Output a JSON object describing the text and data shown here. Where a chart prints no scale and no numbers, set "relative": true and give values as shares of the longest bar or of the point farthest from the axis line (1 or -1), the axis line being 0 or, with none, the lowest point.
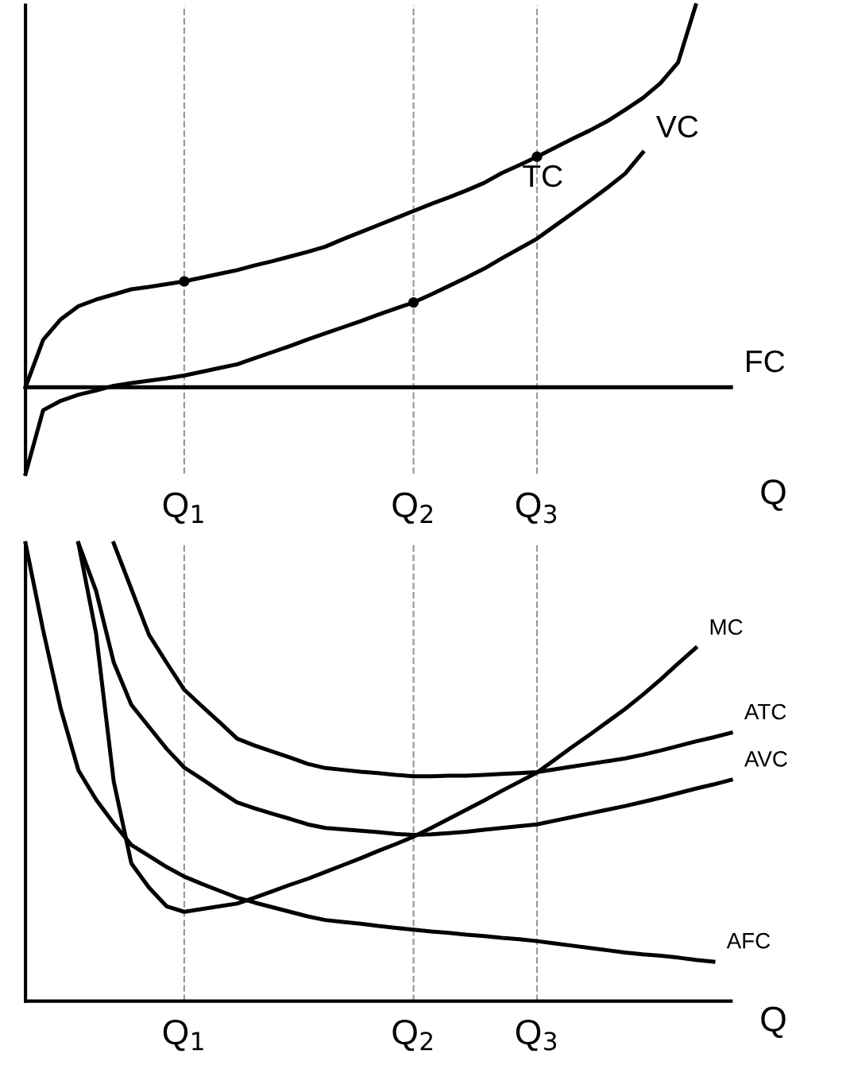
{
  "chart_data": [
    {
      "type": "line",
      "relative": true,
      "xlabel": "Q",
      "tick_labels": "x",
      "grid": false,
      "legend": false,
      "categories": [
        null,
        null,
        null,
        null,
        null,
        null,
        null,
        null,
        null,
        "Q$_{1}$",
        null,
        null,
        null,
        null,
        null,
        null,
        null,
        null,
        null,
        null,
        null,
        null,
        "Q$_{2}$",
        null,
        null,
        null,
        null,
        null,
        null,
        "Q$_{3}$",
        null,
        null,
        null,
        null,
        null,
        null,
        null,
        null,
        null,
        null,
        null
      ],
      "ref_lines": [
        {
          "axis": "x",
          "value": "Q$_{1}$",
          "label": null,
          "color": "#999999",
          "line_style": "dashed"
        },
        {
          "axis": "x",
          "value": "Q$_{2}$",
          "label": null,
          "color": "#999999",
          "line_style": "dashed"
        },
        {
          "axis": "x",
          "value": "Q$_{3}$",
          "label": null,
          "color": "#999999",
          "line_style": "dashed"
        }
      ],
      "series": [
        {
          "name": "TC",
          "color": "#000000",
          "values": [
            0.185,
            0.286,
            0.33,
            0.358,
            0.372,
            0.383,
            0.394,
            0.399,
            0.405,
            0.411,
            0.419,
            0.427,
            0.435,
            0.445,
            0.454,
            0.464,
            0.474,
            0.485,
            0.501,
            0.516,
            0.531,
            0.546,
            0.561,
            0.576,
            0.59,
            0.605,
            0.621,
            0.642,
            0.659,
            0.677,
            0.696,
            0.715,
            0.733,
            0.753,
            0.777,
            0.802,
            0.834,
            0.878,
            1,
            null,
            null
          ]
        },
        {
          "name": "VC",
          "color": "#000000",
          "values": [
            0,
            0.136,
            0.156,
            0.169,
            0.178,
            0.188,
            0.194,
            0.199,
            0.204,
            0.21,
            0.218,
            0.226,
            0.234,
            0.247,
            0.26,
            0.273,
            0.287,
            0.3,
            0.313,
            0.326,
            0.34,
            0.353,
            0.366,
            0.383,
            0.401,
            0.419,
            0.438,
            0.46,
            0.481,
            0.502,
            0.529,
            0.556,
            0.583,
            0.611,
            0.641,
            0.686,
            null,
            null,
            null,
            null,
            null
          ]
        },
        {
          "name": "FC",
          "color": "#000000",
          "values": [
            0.185,
            0.185,
            0.185,
            0.185,
            0.185,
            0.185,
            0.185,
            0.185,
            0.185,
            0.185,
            0.185,
            0.185,
            0.185,
            0.185,
            0.185,
            0.185,
            0.185,
            0.185,
            0.185,
            0.185,
            0.185,
            0.185,
            0.185,
            0.185,
            0.185,
            0.185,
            0.185,
            0.185,
            0.185,
            0.185,
            0.185,
            0.185,
            0.185,
            0.185,
            0.185,
            0.185,
            0.185,
            0.185,
            0.185,
            0.185,
            0.185
          ]
        },
        {
          "type": "scatter",
          "color": "#000000",
          "marker": "circle",
          "x": [
            "Q$_{1}$",
            "Q$_{3}$",
            "Q$_{2}$"
          ],
          "values": [
            0.411,
            0.677,
            0.366
          ]
        }
      ]
    },
    {
      "type": "line",
      "relative": true,
      "xlabel": "Q",
      "tick_labels": "x",
      "grid": false,
      "legend": false,
      "categories": [
        null,
        null,
        null,
        null,
        null,
        null,
        null,
        null,
        null,
        "Q$_{1}$",
        null,
        null,
        null,
        null,
        null,
        null,
        null,
        null,
        null,
        null,
        null,
        null,
        "Q$_{2}$",
        null,
        null,
        null,
        null,
        null,
        null,
        "Q$_{3}$",
        null,
        null,
        null,
        null,
        null,
        null,
        null,
        null,
        null,
        null,
        null
      ],
      "ref_lines": [
        {
          "axis": "x",
          "value": "Q$_{1}$",
          "label": null,
          "color": "#999999",
          "line_style": "dashed"
        },
        {
          "axis": "x",
          "value": "Q$_{2}$",
          "label": null,
          "color": "#999999",
          "line_style": "dashed"
        },
        {
          "axis": "x",
          "value": "Q$_{3}$",
          "label": null,
          "color": "#999999",
          "line_style": "dashed"
        }
      ],
      "series": [
        {
          "name": "MC",
          "color": "#000000",
          "values": [
            null,
            null,
            null,
            1,
            0.803,
            0.48,
            0.301,
            0.248,
            0.207,
            0.195,
            0.201,
            0.207,
            0.213,
            0.226,
            0.24,
            0.254,
            0.267,
            0.282,
            0.297,
            0.312,
            0.328,
            0.343,
            0.359,
            0.378,
            0.398,
            0.418,
            0.438,
            0.459,
            0.479,
            0.499,
            0.527,
            0.555,
            0.582,
            0.61,
            0.638,
            0.669,
            0.702,
            0.737,
            0.771,
            null,
            null
          ]
        },
        {
          "name": "ATC",
          "color": "#000000",
          "values": [
            null,
            null,
            null,
            null,
            null,
            1,
            0.9,
            0.8,
            0.739,
            0.68,
            0.644,
            0.609,
            0.573,
            0.558,
            0.545,
            0.532,
            0.518,
            0.509,
            0.505,
            0.501,
            0.498,
            0.494,
            0.491,
            0.491,
            0.492,
            0.492,
            0.494,
            0.496,
            0.498,
            0.5,
            0.506,
            0.512,
            0.518,
            0.524,
            0.53,
            0.538,
            0.547,
            0.557,
            0.567,
            0.576,
            0.586
          ]
        },
        {
          "name": "AVC",
          "color": "#000000",
          "values": [
            null,
            null,
            null,
            1,
            0.896,
            0.74,
            0.647,
            0.599,
            0.551,
            0.51,
            0.485,
            0.459,
            0.434,
            0.421,
            0.409,
            0.398,
            0.386,
            0.378,
            0.375,
            0.372,
            0.369,
            0.365,
            0.363,
            0.364,
            0.367,
            0.37,
            0.374,
            0.378,
            0.382,
            0.386,
            0.394,
            0.402,
            0.41,
            0.418,
            0.426,
            0.435,
            0.444,
            0.454,
            0.464,
            0.473,
            0.483
          ]
        },
        {
          "name": "AFC",
          "color": "#000000",
          "values": [
            1,
            0.81,
            0.638,
            0.504,
            0.44,
            0.388,
            0.341,
            0.317,
            0.293,
            0.272,
            0.256,
            0.241,
            0.226,
            0.215,
            0.205,
            0.195,
            0.185,
            0.177,
            0.173,
            0.169,
            0.164,
            0.16,
            0.156,
            0.152,
            0.149,
            0.145,
            0.142,
            0.138,
            0.135,
            0.131,
            0.126,
            0.121,
            0.116,
            0.111,
            0.106,
            0.102,
            0.099,
            0.095,
            0.09,
            0.086,
            null
          ]
        }
      ]
    }
  ]
}
